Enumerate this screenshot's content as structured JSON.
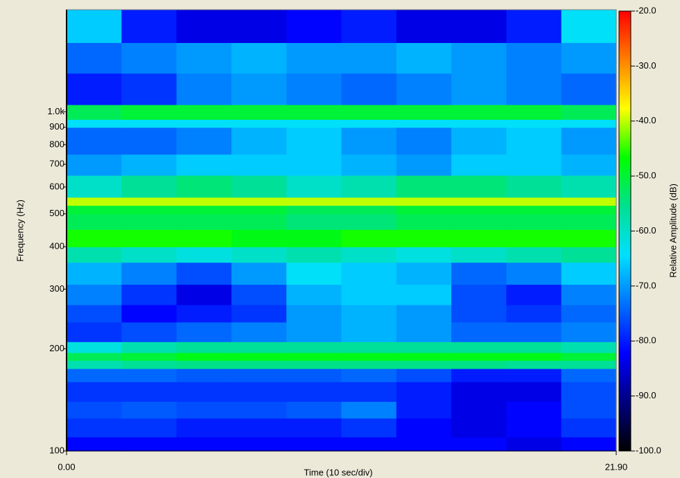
{
  "chart_data": {
    "type": "heatmap",
    "xlabel": "Time (10 sec/div)",
    "ylabel": "Frequency (Hz)",
    "zlabel": "Relative Amplitude (dB)",
    "xlim": [
      0,
      21.9
    ],
    "xticks": [
      {
        "value": 0,
        "label": "0.00"
      },
      {
        "value": 21.9,
        "label": "21.90"
      }
    ],
    "ylim": [
      100,
      2000
    ],
    "yscale": "log",
    "yticks": [
      100,
      200,
      300,
      400,
      500,
      600,
      700,
      800,
      900,
      {
        "value": 1000,
        "label": "1.0k"
      }
    ],
    "zlim": [
      -100,
      -20
    ],
    "zticks": [
      {
        "value": -100,
        "label": "-100.0"
      },
      {
        "value": -90,
        "label": "-90.0"
      },
      {
        "value": -80,
        "label": "-80.0"
      },
      {
        "value": -70,
        "label": "-70.0"
      },
      {
        "value": -60,
        "label": "-60.0"
      },
      {
        "value": -50,
        "label": "-50.0"
      },
      {
        "value": -40,
        "label": "-40.0"
      },
      {
        "value": -30,
        "label": "-30.0"
      },
      {
        "value": -20,
        "label": "-20.0"
      }
    ],
    "colormap": [
      "#000000",
      "#000080",
      "#0000ff",
      "#0070ff",
      "#00e0ff",
      "#00e090",
      "#00ff00",
      "#ffff00",
      "#ff8000",
      "#ff0000"
    ],
    "x_bins": [
      0,
      2.19,
      4.38,
      6.57,
      8.76,
      10.95,
      13.14,
      15.33,
      17.52,
      19.71,
      21.9
    ],
    "y_bins": [
      100,
      110,
      125,
      140,
      160,
      175,
      185,
      195,
      210,
      240,
      270,
      310,
      360,
      400,
      450,
      500,
      530,
      560,
      650,
      750,
      900,
      950,
      1050,
      1300,
      1600,
      2000
    ],
    "z": [
      [
        -82,
        -82,
        -82,
        -82,
        -82,
        -82,
        -82,
        -82,
        -84,
        -82
      ],
      [
        -78,
        -78,
        -80,
        -80,
        -80,
        -78,
        -82,
        -84,
        -82,
        -78
      ],
      [
        -76,
        -75,
        -76,
        -76,
        -75,
        -72,
        -80,
        -84,
        -82,
        -76
      ],
      [
        -78,
        -78,
        -78,
        -78,
        -78,
        -78,
        -80,
        -84,
        -84,
        -76
      ],
      [
        -74,
        -74,
        -75,
        -75,
        -75,
        -74,
        -76,
        -80,
        -80,
        -74
      ],
      [
        -58,
        -56,
        -55,
        -55,
        -55,
        -55,
        -55,
        -55,
        -56,
        -56
      ],
      [
        -52,
        -50,
        -48,
        -48,
        -48,
        -48,
        -48,
        -48,
        -48,
        -50
      ],
      [
        -62,
        -58,
        -56,
        -56,
        -56,
        -56,
        -56,
        -56,
        -56,
        -58
      ],
      [
        -78,
        -76,
        -74,
        -72,
        -70,
        -68,
        -70,
        -74,
        -74,
        -72
      ],
      [
        -76,
        -82,
        -80,
        -78,
        -70,
        -68,
        -70,
        -76,
        -78,
        -74
      ],
      [
        -72,
        -78,
        -84,
        -76,
        -68,
        -66,
        -66,
        -76,
        -80,
        -72
      ],
      [
        -68,
        -72,
        -76,
        -70,
        -64,
        -66,
        -68,
        -74,
        -72,
        -66
      ],
      [
        -58,
        -60,
        -62,
        -60,
        -58,
        -60,
        -62,
        -60,
        -58,
        -56
      ],
      [
        -46,
        -46,
        -46,
        -48,
        -48,
        -46,
        -46,
        -46,
        -46,
        -46
      ],
      [
        -52,
        -52,
        -52,
        -52,
        -54,
        -54,
        -52,
        -52,
        -52,
        -52
      ],
      [
        -50,
        -50,
        -50,
        -50,
        -52,
        -52,
        -50,
        -50,
        -50,
        -50
      ],
      [
        -40,
        -40,
        -40,
        -40,
        -40,
        -40,
        -40,
        -40,
        -40,
        -40
      ],
      [
        -60,
        -56,
        -54,
        -56,
        -60,
        -58,
        -54,
        -54,
        -56,
        -58
      ],
      [
        -70,
        -68,
        -66,
        -66,
        -66,
        -68,
        -70,
        -66,
        -66,
        -68
      ],
      [
        -74,
        -74,
        -72,
        -68,
        -66,
        -70,
        -72,
        -68,
        -66,
        -70
      ],
      [
        -64,
        -64,
        -64,
        -64,
        -64,
        -64,
        -64,
        -64,
        -64,
        -64
      ],
      [
        -52,
        -50,
        -50,
        -50,
        -50,
        -50,
        -50,
        -50,
        -50,
        -52
      ],
      [
        -80,
        -78,
        -72,
        -70,
        -72,
        -74,
        -72,
        -70,
        -72,
        -74
      ],
      [
        -74,
        -72,
        -70,
        -68,
        -70,
        -70,
        -68,
        -70,
        -72,
        -70
      ],
      [
        -66,
        -80,
        -84,
        -84,
        -82,
        -80,
        -84,
        -84,
        -80,
        -64
      ]
    ]
  }
}
